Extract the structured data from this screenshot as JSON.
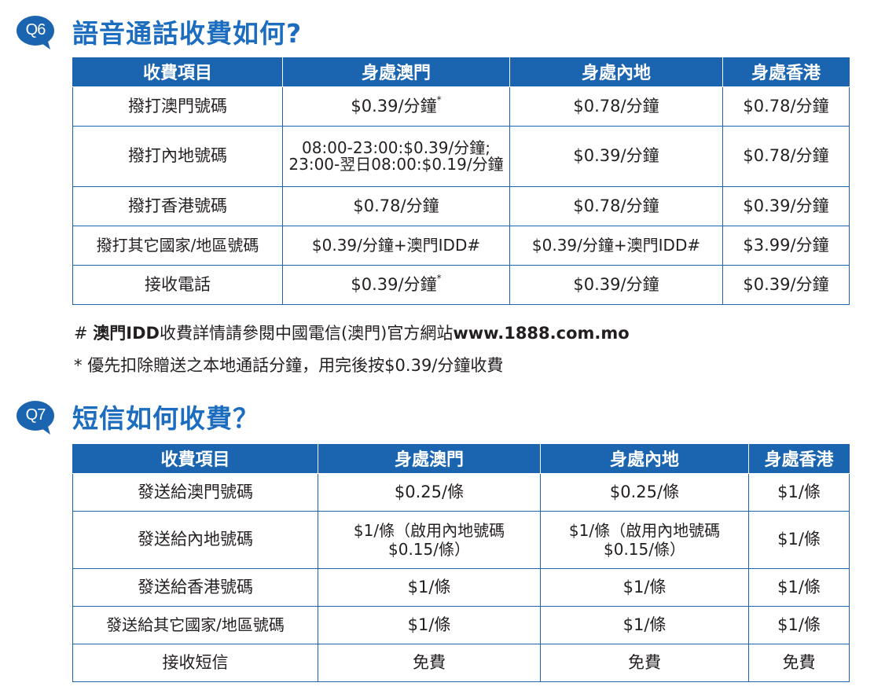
{
  "q6": {
    "badge": "Q6",
    "title": "語音通話收費如何?",
    "headers": [
      "收費項目",
      "身處澳門",
      "身處內地",
      "身處香港"
    ],
    "rows": [
      {
        "item": "撥打澳門號碼",
        "macau": "$0.39/分鐘",
        "macau_mark": "*",
        "mainland": "$0.78/分鐘",
        "hk": "$0.78/分鐘"
      },
      {
        "item": "撥打內地號碼",
        "macau_line1": "08:00-23:00:$0.39/分鐘;",
        "macau_line2": "23:00-翌日08:00:$0.19/分鐘",
        "mainland": "$0.39/分鐘",
        "hk": "$0.78/分鐘"
      },
      {
        "item": "撥打香港號碼",
        "macau": "$0.78/分鐘",
        "mainland": "$0.78/分鐘",
        "hk": "$0.39/分鐘"
      },
      {
        "item": "撥打其它國家/地區號碼",
        "macau": "$0.39/分鐘+澳門IDD#",
        "mainland": "$0.39/分鐘+澳門IDD#",
        "hk": "$3.99/分鐘"
      },
      {
        "item": "接收電話",
        "macau": "$0.39/分鐘",
        "macau_mark": "*",
        "mainland": "$0.39/分鐘",
        "hk": "$0.39/分鐘"
      }
    ],
    "note1_mark": "#",
    "note1_bold": "澳門IDD",
    "note1_text": "收費詳情請參閱中國電信(澳門)官方網站",
    "note1_url": "www.1888.com.mo",
    "note2_mark": "*",
    "note2_text": "優先扣除贈送之本地通話分鐘，用完後按$0.39/分鐘收費"
  },
  "q7": {
    "badge": "Q7",
    "title": "短信如何收費？",
    "headers": [
      "收費項目",
      "身處澳門",
      "身處內地",
      "身處香港"
    ],
    "rows": [
      {
        "item": "發送給澳門號碼",
        "macau": "$0.25/條",
        "mainland": "$0.25/條",
        "hk": "$1/條"
      },
      {
        "item": "發送給內地號碼",
        "macau_line1": "$1/條（啟用內地號碼",
        "macau_line2": "$0.15/條）",
        "mainland_line1": "$1/條（啟用內地號碼",
        "mainland_line2": "$0.15/條）",
        "hk": "$1/條"
      },
      {
        "item": "發送給香港號碼",
        "macau": "$1/條",
        "mainland": "$1/條",
        "hk": "$1/條"
      },
      {
        "item": "發送給其它國家/地區號碼",
        "macau": "$1/條",
        "mainland": "$1/條",
        "hk": "$1/條"
      },
      {
        "item": "接收短信",
        "macau": "免費",
        "mainland": "免費",
        "hk": "免費"
      }
    ]
  },
  "colors": {
    "brand_blue": "#1b64b0",
    "title_blue": "#1c6dbf",
    "text": "#231f20"
  },
  "icons": {
    "badge": "speech-bubble-icon"
  }
}
